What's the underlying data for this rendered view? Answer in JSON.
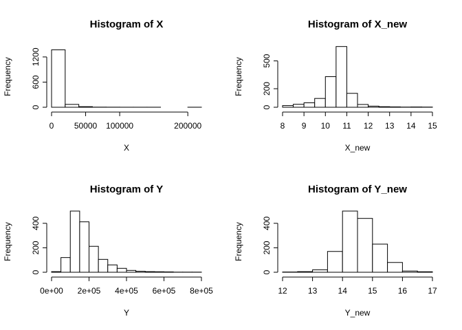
{
  "chart_data": [
    {
      "type": "bar",
      "title": "Histogram of X",
      "xlabel": "X",
      "ylabel": "Frequency",
      "xlim": [
        0,
        220000
      ],
      "ylim": [
        0,
        1460
      ],
      "xticks": [
        0,
        50000,
        100000,
        200000
      ],
      "xtick_labels": [
        "0",
        "50000",
        "100000",
        "200000"
      ],
      "yticks": [
        0,
        600,
        1200
      ],
      "ytick_labels": [
        "0",
        "600",
        "1200"
      ],
      "bins": [
        {
          "x0": 0,
          "x1": 20000,
          "count": 1370
        },
        {
          "x0": 20000,
          "x1": 40000,
          "count": 68
        },
        {
          "x0": 40000,
          "x1": 60000,
          "count": 14
        },
        {
          "x0": 60000,
          "x1": 80000,
          "count": 3
        },
        {
          "x0": 80000,
          "x1": 100000,
          "count": 2
        },
        {
          "x0": 100000,
          "x1": 120000,
          "count": 1
        },
        {
          "x0": 120000,
          "x1": 140000,
          "count": 1
        },
        {
          "x0": 140000,
          "x1": 160000,
          "count": 1
        },
        {
          "x0": 160000,
          "x1": 180000,
          "count": 0
        },
        {
          "x0": 180000,
          "x1": 200000,
          "count": 0
        },
        {
          "x0": 200000,
          "x1": 220000,
          "count": 1
        }
      ]
    },
    {
      "type": "bar",
      "title": "Histogram of X_new",
      "xlabel": "X_new",
      "ylabel": "Frequency",
      "xlim": [
        8,
        15
      ],
      "ylim": [
        0,
        660
      ],
      "xticks": [
        8,
        9,
        10,
        11,
        12,
        13,
        14,
        15
      ],
      "xtick_labels": [
        "8",
        "9",
        "10",
        "11",
        "12",
        "13",
        "14",
        "15"
      ],
      "yticks": [
        0,
        200,
        500
      ],
      "ytick_labels": [
        "0",
        "200",
        "500"
      ],
      "bins": [
        {
          "x0": 8.0,
          "x1": 8.5,
          "count": 18
        },
        {
          "x0": 8.5,
          "x1": 9.0,
          "count": 32
        },
        {
          "x0": 9.0,
          "x1": 9.5,
          "count": 48
        },
        {
          "x0": 9.5,
          "x1": 10.0,
          "count": 95
        },
        {
          "x0": 10.0,
          "x1": 10.5,
          "count": 330
        },
        {
          "x0": 10.5,
          "x1": 11.0,
          "count": 655
        },
        {
          "x0": 11.0,
          "x1": 11.5,
          "count": 150
        },
        {
          "x0": 11.5,
          "x1": 12.0,
          "count": 30
        },
        {
          "x0": 12.0,
          "x1": 12.5,
          "count": 12
        },
        {
          "x0": 12.5,
          "x1": 13.0,
          "count": 6
        },
        {
          "x0": 13.0,
          "x1": 13.5,
          "count": 4
        },
        {
          "x0": 13.5,
          "x1": 14.0,
          "count": 2
        },
        {
          "x0": 14.0,
          "x1": 14.5,
          "count": 3
        },
        {
          "x0": 14.5,
          "x1": 15.0,
          "count": 2
        }
      ]
    },
    {
      "type": "bar",
      "title": "Histogram of Y",
      "xlabel": "Y",
      "ylabel": "Frequency",
      "xlim": [
        0,
        800000
      ],
      "ylim": [
        0,
        500
      ],
      "xticks": [
        0,
        200000,
        400000,
        600000,
        800000
      ],
      "xtick_labels": [
        "0e+00",
        "2e+05",
        "4e+05",
        "6e+05",
        "8e+05"
      ],
      "yticks": [
        0,
        200,
        400
      ],
      "ytick_labels": [
        "0",
        "200",
        "400"
      ],
      "bins": [
        {
          "x0": 0,
          "x1": 50000,
          "count": 5
        },
        {
          "x0": 50000,
          "x1": 100000,
          "count": 120
        },
        {
          "x0": 100000,
          "x1": 150000,
          "count": 500
        },
        {
          "x0": 150000,
          "x1": 200000,
          "count": 412
        },
        {
          "x0": 200000,
          "x1": 250000,
          "count": 212
        },
        {
          "x0": 250000,
          "x1": 300000,
          "count": 105
        },
        {
          "x0": 300000,
          "x1": 350000,
          "count": 60
        },
        {
          "x0": 350000,
          "x1": 400000,
          "count": 32
        },
        {
          "x0": 400000,
          "x1": 450000,
          "count": 15
        },
        {
          "x0": 450000,
          "x1": 500000,
          "count": 8
        },
        {
          "x0": 500000,
          "x1": 550000,
          "count": 5
        },
        {
          "x0": 550000,
          "x1": 600000,
          "count": 4
        },
        {
          "x0": 600000,
          "x1": 650000,
          "count": 3
        },
        {
          "x0": 650000,
          "x1": 700000,
          "count": 1
        },
        {
          "x0": 700000,
          "x1": 750000,
          "count": 1
        },
        {
          "x0": 750000,
          "x1": 800000,
          "count": 1
        }
      ]
    },
    {
      "type": "bar",
      "title": "Histogram of Y_new",
      "xlabel": "Y_new",
      "ylabel": "Frequency",
      "xlim": [
        12,
        17
      ],
      "ylim": [
        0,
        500
      ],
      "xticks": [
        12,
        13,
        14,
        15,
        16,
        17
      ],
      "xtick_labels": [
        "12",
        "13",
        "14",
        "15",
        "16",
        "17"
      ],
      "yticks": [
        0,
        200,
        400
      ],
      "ytick_labels": [
        "0",
        "200",
        "400"
      ],
      "bins": [
        {
          "x0": 12.0,
          "x1": 12.5,
          "count": 2
        },
        {
          "x0": 12.5,
          "x1": 13.0,
          "count": 5
        },
        {
          "x0": 13.0,
          "x1": 13.5,
          "count": 20
        },
        {
          "x0": 13.5,
          "x1": 14.0,
          "count": 170
        },
        {
          "x0": 14.0,
          "x1": 14.5,
          "count": 500
        },
        {
          "x0": 14.5,
          "x1": 15.0,
          "count": 440
        },
        {
          "x0": 15.0,
          "x1": 15.5,
          "count": 230
        },
        {
          "x0": 15.5,
          "x1": 16.0,
          "count": 80
        },
        {
          "x0": 16.0,
          "x1": 16.5,
          "count": 10
        },
        {
          "x0": 16.5,
          "x1": 17.0,
          "count": 4
        }
      ]
    }
  ]
}
